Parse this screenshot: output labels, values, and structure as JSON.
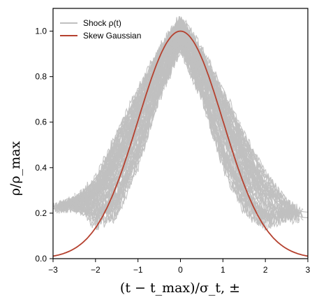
{
  "chart_data": {
    "type": "line",
    "title": "",
    "xlabel": "(t − t_max)/σ_t, ±",
    "ylabel": "ρ/ρ_max",
    "xlim": [
      -3,
      3
    ],
    "ylim": [
      0,
      1.1
    ],
    "xticks": [
      "−3",
      "−2",
      "−1",
      "0",
      "1",
      "2",
      "3"
    ],
    "yticks": [
      "0.0",
      "0.2",
      "0.4",
      "0.6",
      "0.8",
      "1.0"
    ],
    "grid": false,
    "legend_position": "top-left",
    "legend": [
      {
        "label": "Shock ρ(t)",
        "color": "#c0c0c0"
      },
      {
        "label": "Skew Gaussian",
        "color": "#b5412f"
      }
    ],
    "series": [
      {
        "name": "Skew Gaussian",
        "color": "#b5412f",
        "function": "exp(-x^2/2)",
        "x": [
          -3,
          -2.5,
          -2,
          -1.5,
          -1,
          -0.5,
          0,
          0.5,
          1,
          1.5,
          2,
          2.5,
          3
        ],
        "y": [
          0.011,
          0.044,
          0.135,
          0.325,
          0.607,
          0.882,
          1.0,
          0.882,
          0.607,
          0.325,
          0.135,
          0.044,
          0.011
        ]
      },
      {
        "name": "Shock ρ(t)",
        "color": "#c0c0c0",
        "description": "ensemble of many noisy gray curves",
        "envelope_x": [
          -3,
          -2.5,
          -2,
          -1.5,
          -1,
          -0.5,
          0,
          0.5,
          1,
          1.5,
          2,
          2.5,
          3
        ],
        "envelope_upper": [
          0.23,
          0.26,
          0.35,
          0.55,
          0.74,
          0.92,
          1.06,
          0.92,
          0.74,
          0.55,
          0.38,
          0.25,
          0.18
        ],
        "envelope_lower": [
          0.22,
          0.22,
          0.14,
          0.18,
          0.4,
          0.7,
          0.92,
          0.7,
          0.4,
          0.2,
          0.14,
          0.18,
          0.18
        ]
      }
    ]
  }
}
